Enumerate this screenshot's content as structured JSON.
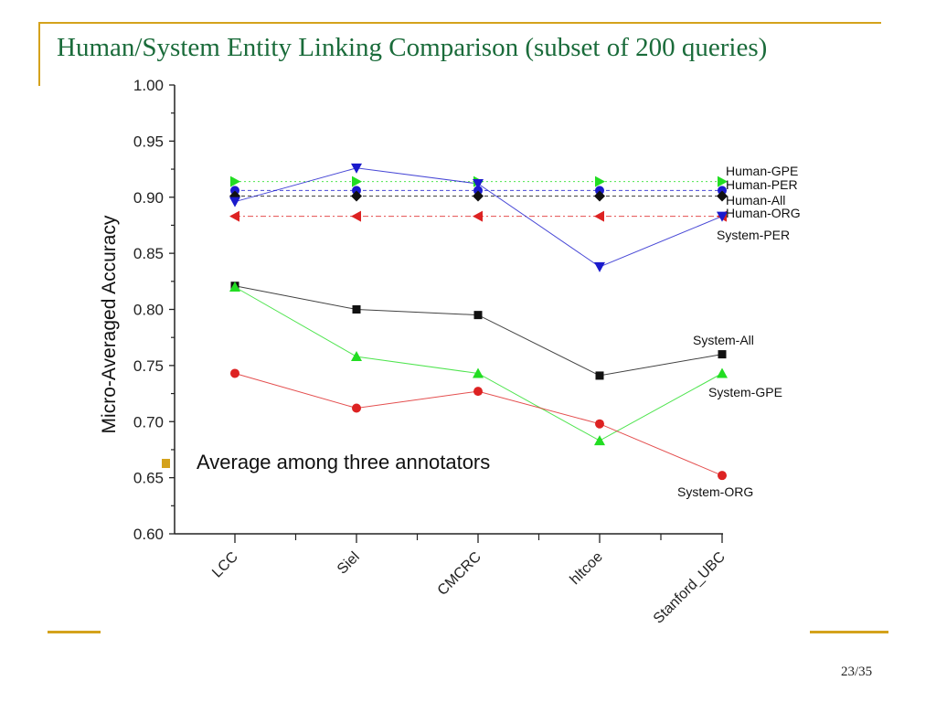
{
  "slide": {
    "title": "Human/System Entity Linking Comparison (subset of 200 queries)",
    "page_number": "23/35",
    "annotation": "Average among three annotators",
    "accent_color": "#d4a21c",
    "title_color": "#1a6b3a"
  },
  "chart_data": {
    "type": "line",
    "title": "",
    "xlabel": "",
    "ylabel": "Micro-Averaged Accuracy",
    "ylim": [
      0.6,
      1.0
    ],
    "yticks": [
      "0.60",
      "0.65",
      "0.70",
      "0.75",
      "0.80",
      "0.85",
      "0.90",
      "0.95",
      "1.00"
    ],
    "categories": [
      "LCC",
      "Siel",
      "CMCRC",
      "hltcoe",
      "Stanford_UBC"
    ],
    "grid": false,
    "legend": "inline labels at right end of each series",
    "series": [
      {
        "name": "Human-GPE",
        "label": "Human-GPE",
        "values": [
          0.914,
          0.914,
          0.914,
          0.914,
          0.914
        ],
        "color": "#22dd22",
        "marker": "triangle-right",
        "dash": "dotted"
      },
      {
        "name": "Human-PER",
        "label": "Human-PER",
        "values": [
          0.906,
          0.906,
          0.906,
          0.906,
          0.906
        ],
        "color": "#1a1acc",
        "marker": "circle",
        "dash": "dashed"
      },
      {
        "name": "Human-All",
        "label": "Human-All",
        "values": [
          0.901,
          0.901,
          0.901,
          0.901,
          0.901
        ],
        "color": "#111111",
        "marker": "diamond",
        "dash": "dashed"
      },
      {
        "name": "Human-ORG",
        "label": "Human-ORG",
        "values": [
          0.883,
          0.883,
          0.883,
          0.883,
          0.883
        ],
        "color": "#dd2222",
        "marker": "triangle-left",
        "dash": "dashdot"
      },
      {
        "name": "System-PER",
        "label": "System-PER",
        "values": [
          0.896,
          0.926,
          0.912,
          0.838,
          0.883
        ],
        "color": "#1a1acc",
        "marker": "triangle-down",
        "dash": "solid"
      },
      {
        "name": "System-All",
        "label": "System-All",
        "values": [
          0.821,
          0.8,
          0.795,
          0.741,
          0.76
        ],
        "color": "#111111",
        "marker": "square",
        "dash": "solid"
      },
      {
        "name": "System-GPE",
        "label": "System-GPE",
        "values": [
          0.82,
          0.758,
          0.743,
          0.683,
          0.743
        ],
        "color": "#22dd22",
        "marker": "triangle-up",
        "dash": "solid"
      },
      {
        "name": "System-ORG",
        "label": "System-ORG",
        "values": [
          0.743,
          0.712,
          0.727,
          0.698,
          0.652
        ],
        "color": "#dd2222",
        "marker": "circle",
        "dash": "solid"
      }
    ]
  }
}
